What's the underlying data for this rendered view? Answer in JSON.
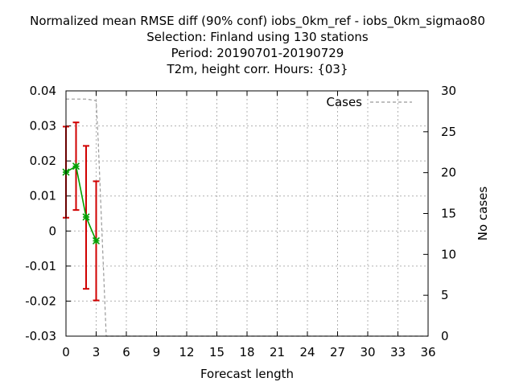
{
  "chart_data": {
    "type": "line",
    "title_lines": [
      "Normalized mean RMSE diff (90% conf) iobs_0km_ref - iobs_0km_sigmao80",
      "Selection: Finland using   130 stations",
      "Period: 20190701-20190729",
      "T2m, height corr.   Hours: {03}"
    ],
    "xlabel": "Forecast length",
    "ylabel_right": "No cases",
    "xlim": [
      0,
      36
    ],
    "ylim": [
      -0.03,
      0.04
    ],
    "ylim_right": [
      0,
      30
    ],
    "x_ticks": [
      "0",
      "3",
      "6",
      "9",
      "12",
      "15",
      "18",
      "21",
      "24",
      "27",
      "30",
      "33",
      "36"
    ],
    "y_ticks": [
      "0.04",
      "0.03",
      "0.02",
      "0.01",
      "0",
      "-0.01",
      "-0.02",
      "-0.03"
    ],
    "y_right_ticks": [
      "30",
      "25",
      "20",
      "15",
      "10",
      "5",
      "0"
    ],
    "grid": true,
    "legend_position": "top-right",
    "series": [
      {
        "type": "line-errorbar",
        "color": "#00a000",
        "error_color": "#d00000",
        "points": [
          {
            "x": 0,
            "y": 0.0168,
            "low": 0.0038,
            "high": 0.0298
          },
          {
            "x": 1,
            "y": 0.0185,
            "low": 0.006,
            "high": 0.031
          },
          {
            "x": 2,
            "y": 0.004,
            "low": -0.0165,
            "high": 0.0243
          },
          {
            "x": 3,
            "y": -0.0028,
            "low": -0.0198,
            "high": 0.0142
          }
        ]
      },
      {
        "name": "Cases",
        "axis": "right",
        "type": "step-dashed",
        "color": "#999999",
        "x": [
          0,
          1,
          2,
          3,
          3.2,
          3.4,
          3.6,
          3.8,
          4,
          36
        ],
        "y": [
          29,
          29,
          29,
          28.8,
          24,
          18,
          12,
          6,
          0,
          0
        ]
      }
    ]
  }
}
